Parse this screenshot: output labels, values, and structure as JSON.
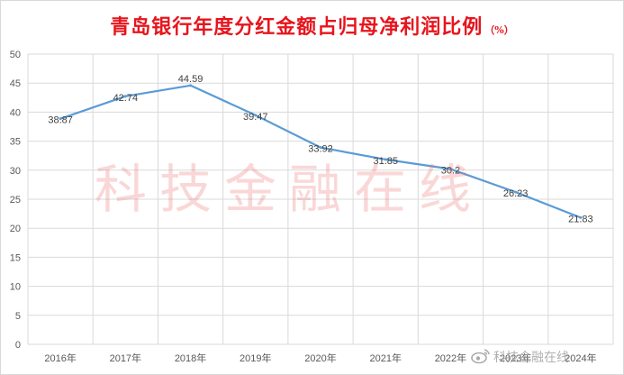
{
  "title": "青岛银行年度分红金额占归母净利润比例",
  "unit": "（%）",
  "watermark": "科技金融在线",
  "corner_watermark": "科技金融在线",
  "icons": {
    "corner_logo": "weibo-icon"
  },
  "colors": {
    "title": "#e8141c",
    "line": "#5b9bd5",
    "grid": "#d9d9d9",
    "watermark": "#ec6e6e"
  },
  "chart_data": {
    "type": "line",
    "categories": [
      "2016年",
      "2017年",
      "2018年",
      "2019年",
      "2020年",
      "2021年",
      "2022年",
      "2023年",
      "2024年"
    ],
    "series": [
      {
        "values": [
          38.87,
          42.74,
          44.59,
          39.47,
          33.92,
          31.85,
          30.2,
          26.23,
          21.83
        ]
      }
    ],
    "data_labels": [
      "38.87",
      "42.74",
      "44.59",
      "39.47",
      "33.92",
      "31.85",
      "30.2",
      "26.23",
      "21.83"
    ],
    "y_ticks": [
      "0",
      "5",
      "10",
      "15",
      "20",
      "25",
      "30",
      "35",
      "40",
      "45",
      "50"
    ],
    "ylim": [
      0,
      50
    ],
    "grid": true,
    "legend": "none"
  }
}
